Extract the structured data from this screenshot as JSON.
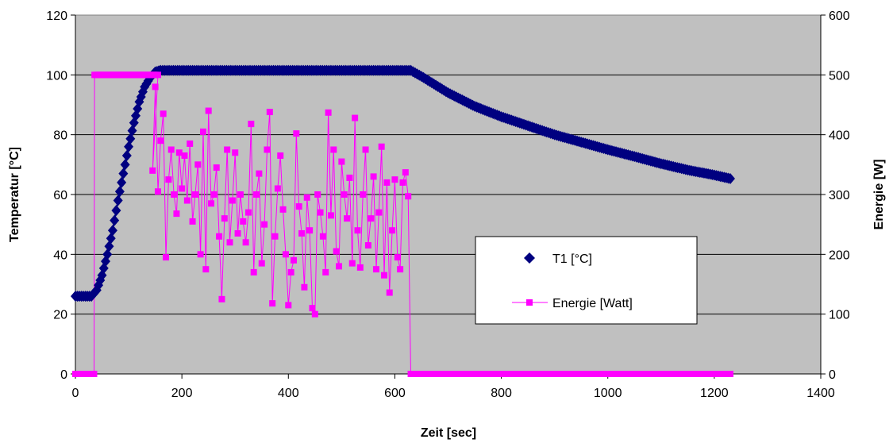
{
  "chart_data": {
    "type": "line",
    "xlabel": "Zeit [sec]",
    "ylabel": "Temperatur [°C]",
    "y2label": "Energie [W]",
    "xlim": [
      0,
      1400
    ],
    "ylim": [
      0,
      120
    ],
    "y2lim": [
      0,
      600
    ],
    "x_ticks": [
      "0",
      "200",
      "400",
      "600",
      "800",
      "1000",
      "1200",
      "1400"
    ],
    "y_ticks": [
      "0",
      "20",
      "40",
      "60",
      "80",
      "100",
      "120"
    ],
    "y2_ticks": [
      "0",
      "100",
      "200",
      "300",
      "400",
      "500",
      "600"
    ],
    "grid": "horizontal",
    "legend_position": "right",
    "plot_background": "#C0C0C0",
    "series": [
      {
        "name": "T1 [°C]",
        "axis": "left",
        "color": "#000080",
        "marker": "diamond",
        "points": [
          [
            0,
            26
          ],
          [
            30,
            26
          ],
          [
            40,
            28
          ],
          [
            50,
            33
          ],
          [
            60,
            40
          ],
          [
            70,
            48
          ],
          [
            80,
            58
          ],
          [
            90,
            67
          ],
          [
            100,
            76
          ],
          [
            110,
            84
          ],
          [
            120,
            91
          ],
          [
            130,
            96
          ],
          [
            140,
            99
          ],
          [
            150,
            101
          ],
          [
            160,
            101.5
          ],
          [
            200,
            101.5
          ],
          [
            300,
            101.5
          ],
          [
            400,
            101.5
          ],
          [
            500,
            101.5
          ],
          [
            600,
            101.5
          ],
          [
            630,
            101.5
          ],
          [
            650,
            99.5
          ],
          [
            700,
            94
          ],
          [
            750,
            89.5
          ],
          [
            800,
            86
          ],
          [
            850,
            83
          ],
          [
            900,
            80
          ],
          [
            950,
            77.5
          ],
          [
            1000,
            75
          ],
          [
            1050,
            72.7
          ],
          [
            1100,
            70.3
          ],
          [
            1150,
            68.2
          ],
          [
            1200,
            66.5
          ],
          [
            1230,
            65.3
          ]
        ]
      },
      {
        "name": "Energie [Watt]",
        "axis": "right",
        "color": "#FF00FF",
        "marker": "square",
        "points": [
          [
            0,
            0
          ],
          [
            35,
            0
          ],
          [
            36,
            500
          ],
          [
            80,
            500
          ],
          [
            150,
            500
          ],
          [
            155,
            500
          ],
          [
            145,
            340
          ],
          [
            150,
            480
          ],
          [
            155,
            305
          ],
          [
            160,
            390
          ],
          [
            165,
            435
          ],
          [
            170,
            195
          ],
          [
            175,
            325
          ],
          [
            180,
            375
          ],
          [
            185,
            300
          ],
          [
            190,
            268
          ],
          [
            195,
            370
          ],
          [
            200,
            310
          ],
          [
            205,
            365
          ],
          [
            210,
            290
          ],
          [
            215,
            385
          ],
          [
            220,
            255
          ],
          [
            225,
            300
          ],
          [
            230,
            350
          ],
          [
            235,
            200
          ],
          [
            240,
            405
          ],
          [
            245,
            175
          ],
          [
            250,
            440
          ],
          [
            255,
            285
          ],
          [
            260,
            300
          ],
          [
            265,
            345
          ],
          [
            270,
            230
          ],
          [
            275,
            125
          ],
          [
            280,
            260
          ],
          [
            285,
            375
          ],
          [
            290,
            220
          ],
          [
            295,
            290
          ],
          [
            300,
            370
          ],
          [
            305,
            235
          ],
          [
            310,
            300
          ],
          [
            315,
            255
          ],
          [
            320,
            220
          ],
          [
            325,
            270
          ],
          [
            330,
            418
          ],
          [
            335,
            170
          ],
          [
            340,
            300
          ],
          [
            345,
            335
          ],
          [
            350,
            185
          ],
          [
            355,
            250
          ],
          [
            360,
            375
          ],
          [
            365,
            438
          ],
          [
            370,
            118
          ],
          [
            375,
            230
          ],
          [
            380,
            310
          ],
          [
            385,
            365
          ],
          [
            390,
            275
          ],
          [
            395,
            200
          ],
          [
            400,
            115
          ],
          [
            405,
            170
          ],
          [
            410,
            190
          ],
          [
            415,
            402
          ],
          [
            420,
            280
          ],
          [
            425,
            235
          ],
          [
            430,
            145
          ],
          [
            435,
            295
          ],
          [
            440,
            240
          ],
          [
            445,
            110
          ],
          [
            450,
            100
          ],
          [
            455,
            300
          ],
          [
            460,
            270
          ],
          [
            465,
            230
          ],
          [
            470,
            170
          ],
          [
            475,
            437
          ],
          [
            480,
            265
          ],
          [
            485,
            375
          ],
          [
            490,
            205
          ],
          [
            495,
            180
          ],
          [
            500,
            355
          ],
          [
            505,
            300
          ],
          [
            510,
            260
          ],
          [
            515,
            328
          ],
          [
            520,
            185
          ],
          [
            525,
            428
          ],
          [
            530,
            240
          ],
          [
            535,
            178
          ],
          [
            540,
            300
          ],
          [
            545,
            375
          ],
          [
            550,
            215
          ],
          [
            555,
            260
          ],
          [
            560,
            330
          ],
          [
            565,
            175
          ],
          [
            570,
            270
          ],
          [
            575,
            380
          ],
          [
            580,
            165
          ],
          [
            585,
            320
          ],
          [
            590,
            136
          ],
          [
            595,
            240
          ],
          [
            600,
            325
          ],
          [
            605,
            195
          ],
          [
            610,
            175
          ],
          [
            615,
            320
          ],
          [
            620,
            337
          ],
          [
            625,
            297
          ],
          [
            630,
            0
          ],
          [
            700,
            0
          ],
          [
            800,
            0
          ],
          [
            900,
            0
          ],
          [
            1000,
            0
          ],
          [
            1100,
            0
          ],
          [
            1230,
            0
          ]
        ]
      }
    ]
  }
}
